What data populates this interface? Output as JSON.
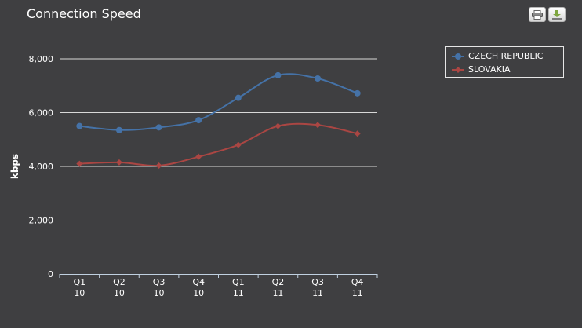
{
  "chart_data": {
    "type": "line",
    "title": "Connection Speed",
    "xlabel": "",
    "ylabel": "kbps",
    "categories": [
      "Q1 10",
      "Q2 10",
      "Q3 10",
      "Q4 10",
      "Q1 11",
      "Q2 11",
      "Q3 11",
      "Q4 11"
    ],
    "category_labels": [
      {
        "line1": "Q1",
        "line2": "10"
      },
      {
        "line1": "Q2",
        "line2": "10"
      },
      {
        "line1": "Q3",
        "line2": "10"
      },
      {
        "line1": "Q4",
        "line2": "10"
      },
      {
        "line1": "Q1",
        "line2": "11"
      },
      {
        "line1": "Q2",
        "line2": "11"
      },
      {
        "line1": "Q3",
        "line2": "11"
      },
      {
        "line1": "Q4",
        "line2": "11"
      }
    ],
    "ylim": [
      0,
      8000
    ],
    "yticks": [
      0,
      2000,
      4000,
      6000,
      8000
    ],
    "ytick_labels": [
      "0",
      "2,000",
      "4,000",
      "6,000",
      "8,000"
    ],
    "grid": true,
    "legend_position": "top-right",
    "series": [
      {
        "name": "CZECH REPUBLIC",
        "color": "#4572a7",
        "marker": "circle",
        "values": [
          5500,
          5350,
          5450,
          5720,
          6550,
          7390,
          7270,
          6720
        ]
      },
      {
        "name": "SLOVAKIA",
        "color": "#aa4643",
        "marker": "diamond",
        "values": [
          4100,
          4150,
          4030,
          4360,
          4800,
          5500,
          5540,
          5220
        ]
      }
    ]
  },
  "toolbar": {
    "print_icon": "printer-icon",
    "export_icon": "download-icon"
  }
}
